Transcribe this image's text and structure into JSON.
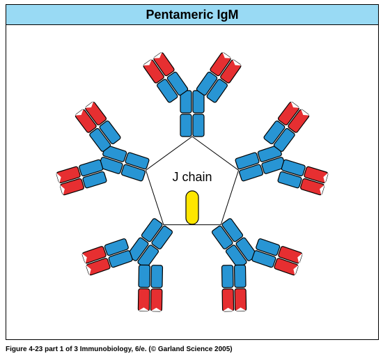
{
  "title": "Pentameric IgM",
  "j_chain_label": "J  chain",
  "caption": "Figure 4-23 part 1 of 3  Immunobiology, 6/e. (© Garland Science 2005)",
  "colors": {
    "title_bg": "#99daf4",
    "heavy_chain": "#2895d4",
    "variable_heavy": "#e62f31",
    "light_chain": "#2895d4",
    "variable_light": "#e62f31",
    "j_chain": "#fee600",
    "stroke": "#000000",
    "background": "#ffffff"
  },
  "geometry": {
    "pentagon_radius": 70,
    "n_monomers": 5,
    "rect_w": 16,
    "rect_h": 32,
    "gap": 2,
    "stroke_width": 1.2,
    "rx": 3
  }
}
